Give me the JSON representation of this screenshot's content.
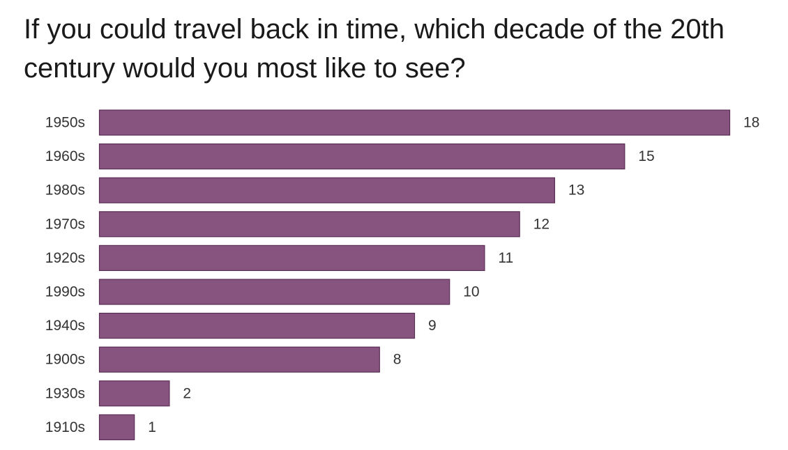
{
  "chart_data": {
    "type": "bar",
    "orientation": "horizontal",
    "title": "If you could travel back in time, which decade of the 20th century would you most like to see?",
    "categories": [
      "1950s",
      "1960s",
      "1980s",
      "1970s",
      "1920s",
      "1990s",
      "1940s",
      "1900s",
      "1930s",
      "1910s"
    ],
    "values": [
      18,
      15,
      13,
      12,
      11,
      10,
      9,
      8,
      2,
      1
    ],
    "xlim": [
      0,
      18
    ],
    "grid": false,
    "legend": "none",
    "bar_color": "#87547F",
    "bar_edge_color": "#5B2E55",
    "data_labels": true
  }
}
